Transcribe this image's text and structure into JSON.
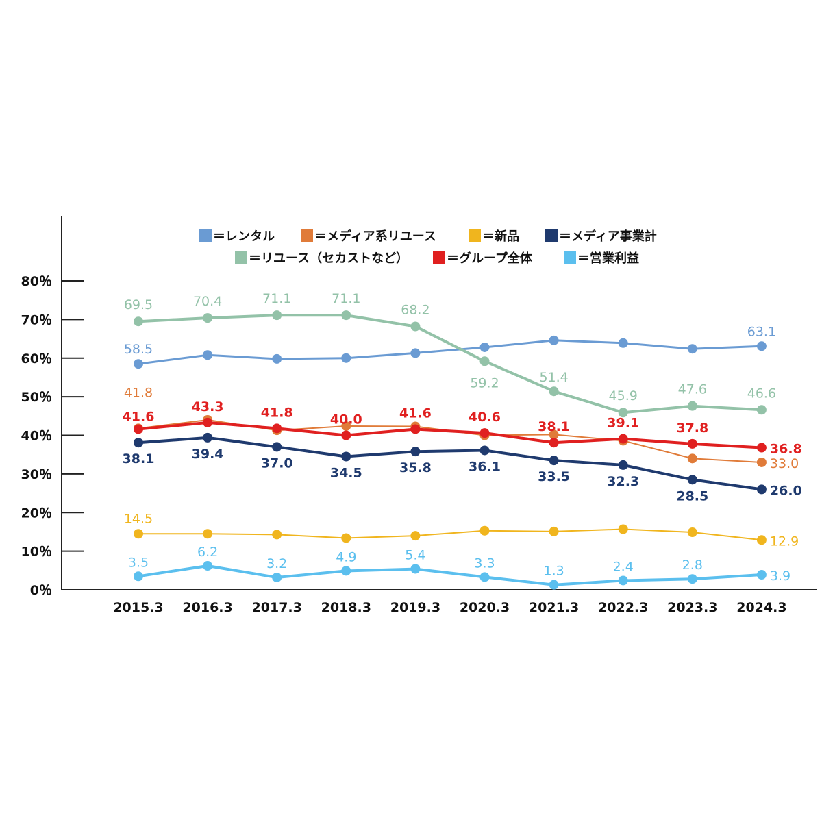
{
  "chart_data": {
    "type": "line",
    "x": [
      "2015.3",
      "2016.3",
      "2017.3",
      "2018.3",
      "2019.3",
      "2020.3",
      "2021.3",
      "2022.3",
      "2023.3",
      "2024.3"
    ],
    "ylim": [
      0,
      80
    ],
    "yticks": [
      0,
      10,
      20,
      30,
      40,
      50,
      60,
      70,
      80
    ],
    "ytick_labels": [
      "0％",
      "10％",
      "20％",
      "30％",
      "40％",
      "50％",
      "60％",
      "70％",
      "80％"
    ],
    "grid": false,
    "legend_position": "top",
    "series": [
      {
        "name": "＝レンタル",
        "color": "#6a9bd3",
        "values": [
          58.5,
          60.8,
          59.8,
          60.0,
          61.3,
          62.8,
          64.6,
          63.9,
          62.4,
          63.1
        ],
        "labels": [
          "58.5",
          "",
          "",
          "",
          "",
          "",
          "",
          "",
          "",
          "63.1"
        ],
        "label_color": "#6a9bd3",
        "stroke_width": 3
      },
      {
        "name": "＝メディア系リユース",
        "color": "#e07b39",
        "values": [
          41.8,
          44.0,
          41.3,
          42.4,
          42.3,
          40.0,
          40.2,
          38.6,
          34.0,
          33.0
        ],
        "labels": [
          "41.8",
          "",
          "",
          "",
          "",
          "",
          "",
          "",
          "",
          "33.0"
        ],
        "label_color": "#e07b39",
        "stroke_width": 2
      },
      {
        "name": "＝新品",
        "color": "#f0b51e",
        "values": [
          14.5,
          14.5,
          14.3,
          13.4,
          14.0,
          15.3,
          15.1,
          15.7,
          14.9,
          12.9
        ],
        "labels": [
          "14.5",
          "",
          "",
          "",
          "",
          "",
          "",
          "",
          "",
          "12.9"
        ],
        "label_color": "#f0b51e",
        "stroke_width": 2
      },
      {
        "name": "＝メディア事業計",
        "color": "#1f3a6e",
        "values": [
          38.1,
          39.4,
          37.0,
          34.5,
          35.8,
          36.1,
          33.5,
          32.3,
          28.5,
          26.0
        ],
        "labels": [
          "38.1",
          "39.4",
          "37.0",
          "34.5",
          "35.8",
          "36.1",
          "33.5",
          "32.3",
          "28.5",
          "26.0"
        ],
        "label_color": "#1f3a6e",
        "stroke_width": 4
      },
      {
        "name": "＝リユース（セカストなど）",
        "color": "#93c2a8",
        "values": [
          69.5,
          70.4,
          71.1,
          71.1,
          68.2,
          59.2,
          51.4,
          45.9,
          47.6,
          46.6
        ],
        "labels": [
          "69.5",
          "70.4",
          "71.1",
          "71.1",
          "68.2",
          "59.2",
          "51.4",
          "45.9",
          "47.6",
          "46.6"
        ],
        "label_color": "#93c2a8",
        "stroke_width": 4
      },
      {
        "name": "＝グループ全体",
        "color": "#e02020",
        "values": [
          41.6,
          43.3,
          41.8,
          40.0,
          41.6,
          40.6,
          38.1,
          39.1,
          37.8,
          36.8
        ],
        "labels": [
          "41.6",
          "43.3",
          "41.8",
          "40.0",
          "41.6",
          "40.6",
          "38.1",
          "39.1",
          "37.8",
          "36.8"
        ],
        "label_color": "#e02020",
        "stroke_width": 4
      },
      {
        "name": "＝営業利益",
        "color": "#5bbfee",
        "values": [
          3.5,
          6.2,
          3.2,
          4.9,
          5.4,
          3.3,
          1.3,
          2.4,
          2.8,
          3.9
        ],
        "labels": [
          "3.5",
          "6.2",
          "3.2",
          "4.9",
          "5.4",
          "3.3",
          "1.3",
          "2.4",
          "2.8",
          "3.9"
        ],
        "label_color": "#5bbfee",
        "stroke_width": 4
      }
    ]
  }
}
